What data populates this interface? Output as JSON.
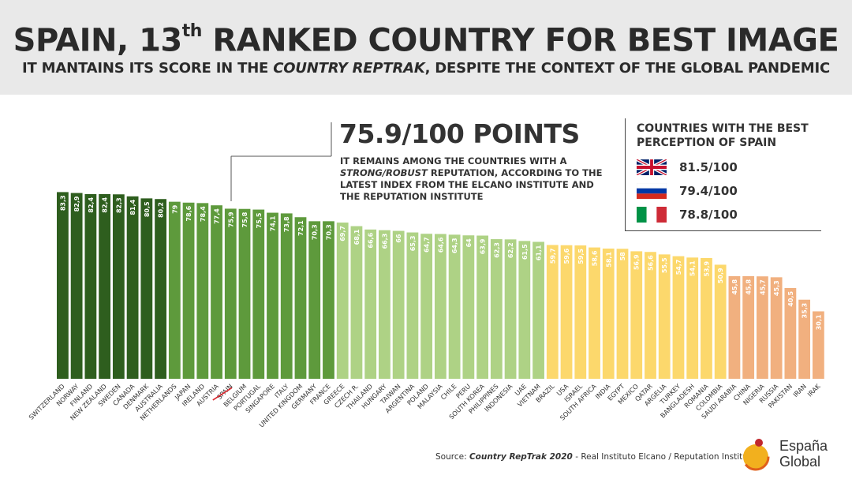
{
  "header": {
    "title_prefix": "SPAIN, 13",
    "title_sup": "th",
    "title_suffix": " RANKED COUNTRY FOR BEST IMAGE",
    "subtitle_part1": "IT MANTAINS ITS SCORE IN THE ",
    "subtitle_italic": "COUNTRY REPTRAK",
    "subtitle_part2": ", DESPITE THE CONTEXT OF THE GLOBAL PANDEMIC"
  },
  "callout": {
    "big": "75.9/100 POINTS",
    "text_part1": "IT REMAINS AMONG THE COUNTRIES WITH A ",
    "text_italic": "STRONG/ROBUST",
    "text_part2": " REPUTATION, ACCORDING TO THE LATEST INDEX FROM THE ELCANO INSTITUTE AND THE REPUTATION INSTITUTE"
  },
  "legend": {
    "title": "COUNTRIES WITH THE BEST PERCEPTION OF SPAIN",
    "items": [
      {
        "flag": "uk-flag-icon",
        "value": "81.5/100"
      },
      {
        "flag": "russia-flag-icon",
        "value": "79.4/100"
      },
      {
        "flag": "italy-flag-icon",
        "value": "78.8/100"
      }
    ]
  },
  "footer": {
    "source_prefix": "Source: ",
    "source_italic": "Country RepTrak 2020",
    "source_suffix": " - Real Instituto Elcano / Reputation Institute"
  },
  "logo": {
    "line1": "España",
    "line2": "Global"
  },
  "colors": {
    "dark_green": "#2e5e1e",
    "mid_green": "#5e9a3c",
    "light_green": "#aed285",
    "yellow": "#fcd86c",
    "salmon": "#f1b07f",
    "spain_strike": "#d8262d"
  },
  "chart_data": {
    "type": "bar",
    "highlight": "SPAIN",
    "categories": [
      "SWITZERLAND",
      "NORWAY",
      "FINLAND",
      "NEW ZEALAND",
      "SWEDEN",
      "CANADA",
      "DENMARK",
      "AUSTRALIA",
      "NETHERLANDS",
      "JAPAN",
      "IRELAND",
      "AUSTRIA",
      "SPAIN",
      "BELGIUM",
      "PORTUGAL",
      "SINGAPORE",
      "ITALY",
      "UNITED KINGDOM",
      "GERMANY",
      "FRANCE",
      "GREECE",
      "CZECH R.",
      "THAILAND",
      "HUNGARY",
      "TAIWAN",
      "ARGENTINA",
      "POLAND",
      "MALAYSIA",
      "CHILE",
      "PERU",
      "SOUTH KOREA",
      "PHILIPPINES",
      "INDONESIA",
      "UAE",
      "VIETNAM",
      "BRAZIL",
      "USA",
      "ISRAEL",
      "SOUTH AFRICA",
      "INDIA",
      "EGYPT",
      "MEXICO",
      "QATAR",
      "ARGELIA",
      "TURKEY",
      "BANGLADESH",
      "ROMANIA",
      "COLOMBIA",
      "SAUDI ARABIA",
      "CHINA",
      "NIGERIA",
      "RUSSIA",
      "PAKISTAN",
      "IRAN",
      "IRAK"
    ],
    "values": [
      83.3,
      82.9,
      82.4,
      82.4,
      82.3,
      81.4,
      80.5,
      80.2,
      79,
      78.6,
      78.4,
      77.4,
      75.9,
      75.8,
      75.5,
      74.1,
      73.8,
      72.1,
      70.3,
      70.3,
      69.7,
      68.1,
      66.6,
      66.3,
      66,
      65.3,
      64.7,
      64.6,
      64.3,
      64,
      63.9,
      62.3,
      62.2,
      61.5,
      61.1,
      59.7,
      59.6,
      59.5,
      58.6,
      58.1,
      58,
      56.9,
      56.6,
      55.5,
      54.7,
      54.1,
      53.9,
      50.9,
      45.8,
      45.8,
      45.7,
      45.3,
      40.5,
      35.3,
      30.1
    ],
    "labels": [
      "83,3",
      "82,9",
      "82,4",
      "82,4",
      "82,3",
      "81,4",
      "80,5",
      "80,2",
      "79",
      "78,6",
      "78,4",
      "77,4",
      "75,9",
      "75,8",
      "75,5",
      "74,1",
      "73,8",
      "72,1",
      "70,3",
      "70,3",
      "69,7",
      "68,1",
      "66,6",
      "66,3",
      "66",
      "65,3",
      "64,7",
      "64,6",
      "64,3",
      "64",
      "63,9",
      "62,3",
      "62,2",
      "61,5",
      "61,1",
      "59,7",
      "59,6",
      "59,5",
      "58,6",
      "58,1",
      "58",
      "56,9",
      "56,6",
      "55,5",
      "54,7",
      "54,1",
      "53,9",
      "50,9",
      "45,8",
      "45,8",
      "45,7",
      "45,3",
      "40,5",
      "35,3",
      "30,1"
    ],
    "color_groups": [
      "dark_green",
      "dark_green",
      "dark_green",
      "dark_green",
      "dark_green",
      "dark_green",
      "dark_green",
      "dark_green",
      "mid_green",
      "mid_green",
      "mid_green",
      "mid_green",
      "mid_green",
      "mid_green",
      "mid_green",
      "mid_green",
      "mid_green",
      "mid_green",
      "mid_green",
      "mid_green",
      "light_green",
      "light_green",
      "light_green",
      "light_green",
      "light_green",
      "light_green",
      "light_green",
      "light_green",
      "light_green",
      "light_green",
      "light_green",
      "light_green",
      "light_green",
      "light_green",
      "light_green",
      "yellow",
      "yellow",
      "yellow",
      "yellow",
      "yellow",
      "yellow",
      "yellow",
      "yellow",
      "yellow",
      "yellow",
      "yellow",
      "yellow",
      "yellow",
      "salmon",
      "salmon",
      "salmon",
      "salmon",
      "salmon",
      "salmon",
      "salmon"
    ],
    "title": "",
    "xlabel": "",
    "ylabel": "",
    "grid": false,
    "legend": "top-right"
  }
}
